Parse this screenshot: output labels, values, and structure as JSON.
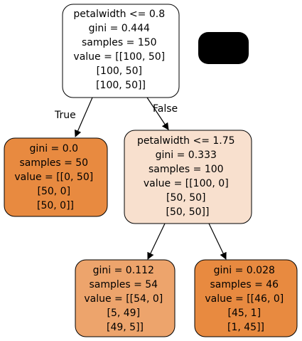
{
  "colors": {
    "root_fill": "#ffffff",
    "right_fill": "#f8e0ce",
    "leaf_dark_fill": "#e88a40",
    "leaf_mid_fill": "#eda46c",
    "legend_fill": "#000000",
    "stroke": "#000000"
  },
  "tree": {
    "root": {
      "lines": [
        "petalwidth <= 0.8",
        "gini = 0.444",
        "samples = 150",
        "value = [[100, 50]",
        "[100, 50]",
        "[100, 50]]"
      ]
    },
    "left_leaf": {
      "lines": [
        "gini = 0.0",
        "samples = 50",
        "value = [[0, 50]",
        "[50, 0]",
        "[50, 0]]"
      ]
    },
    "right_split": {
      "lines": [
        "petalwidth <= 1.75",
        "gini = 0.333",
        "samples = 100",
        "value = [[100, 0]",
        "[50, 50]",
        "[50, 50]]"
      ]
    },
    "right_left_leaf": {
      "lines": [
        "gini = 0.112",
        "samples = 54",
        "value = [[54, 0]",
        "[5, 49]",
        "[49, 5]]"
      ]
    },
    "right_right_leaf": {
      "lines": [
        "gini = 0.028",
        "samples = 46",
        "value = [[46, 0]",
        "[45, 1]",
        "[1, 45]]"
      ]
    },
    "edge_labels": {
      "true_label": "True",
      "false_label": "False"
    }
  }
}
